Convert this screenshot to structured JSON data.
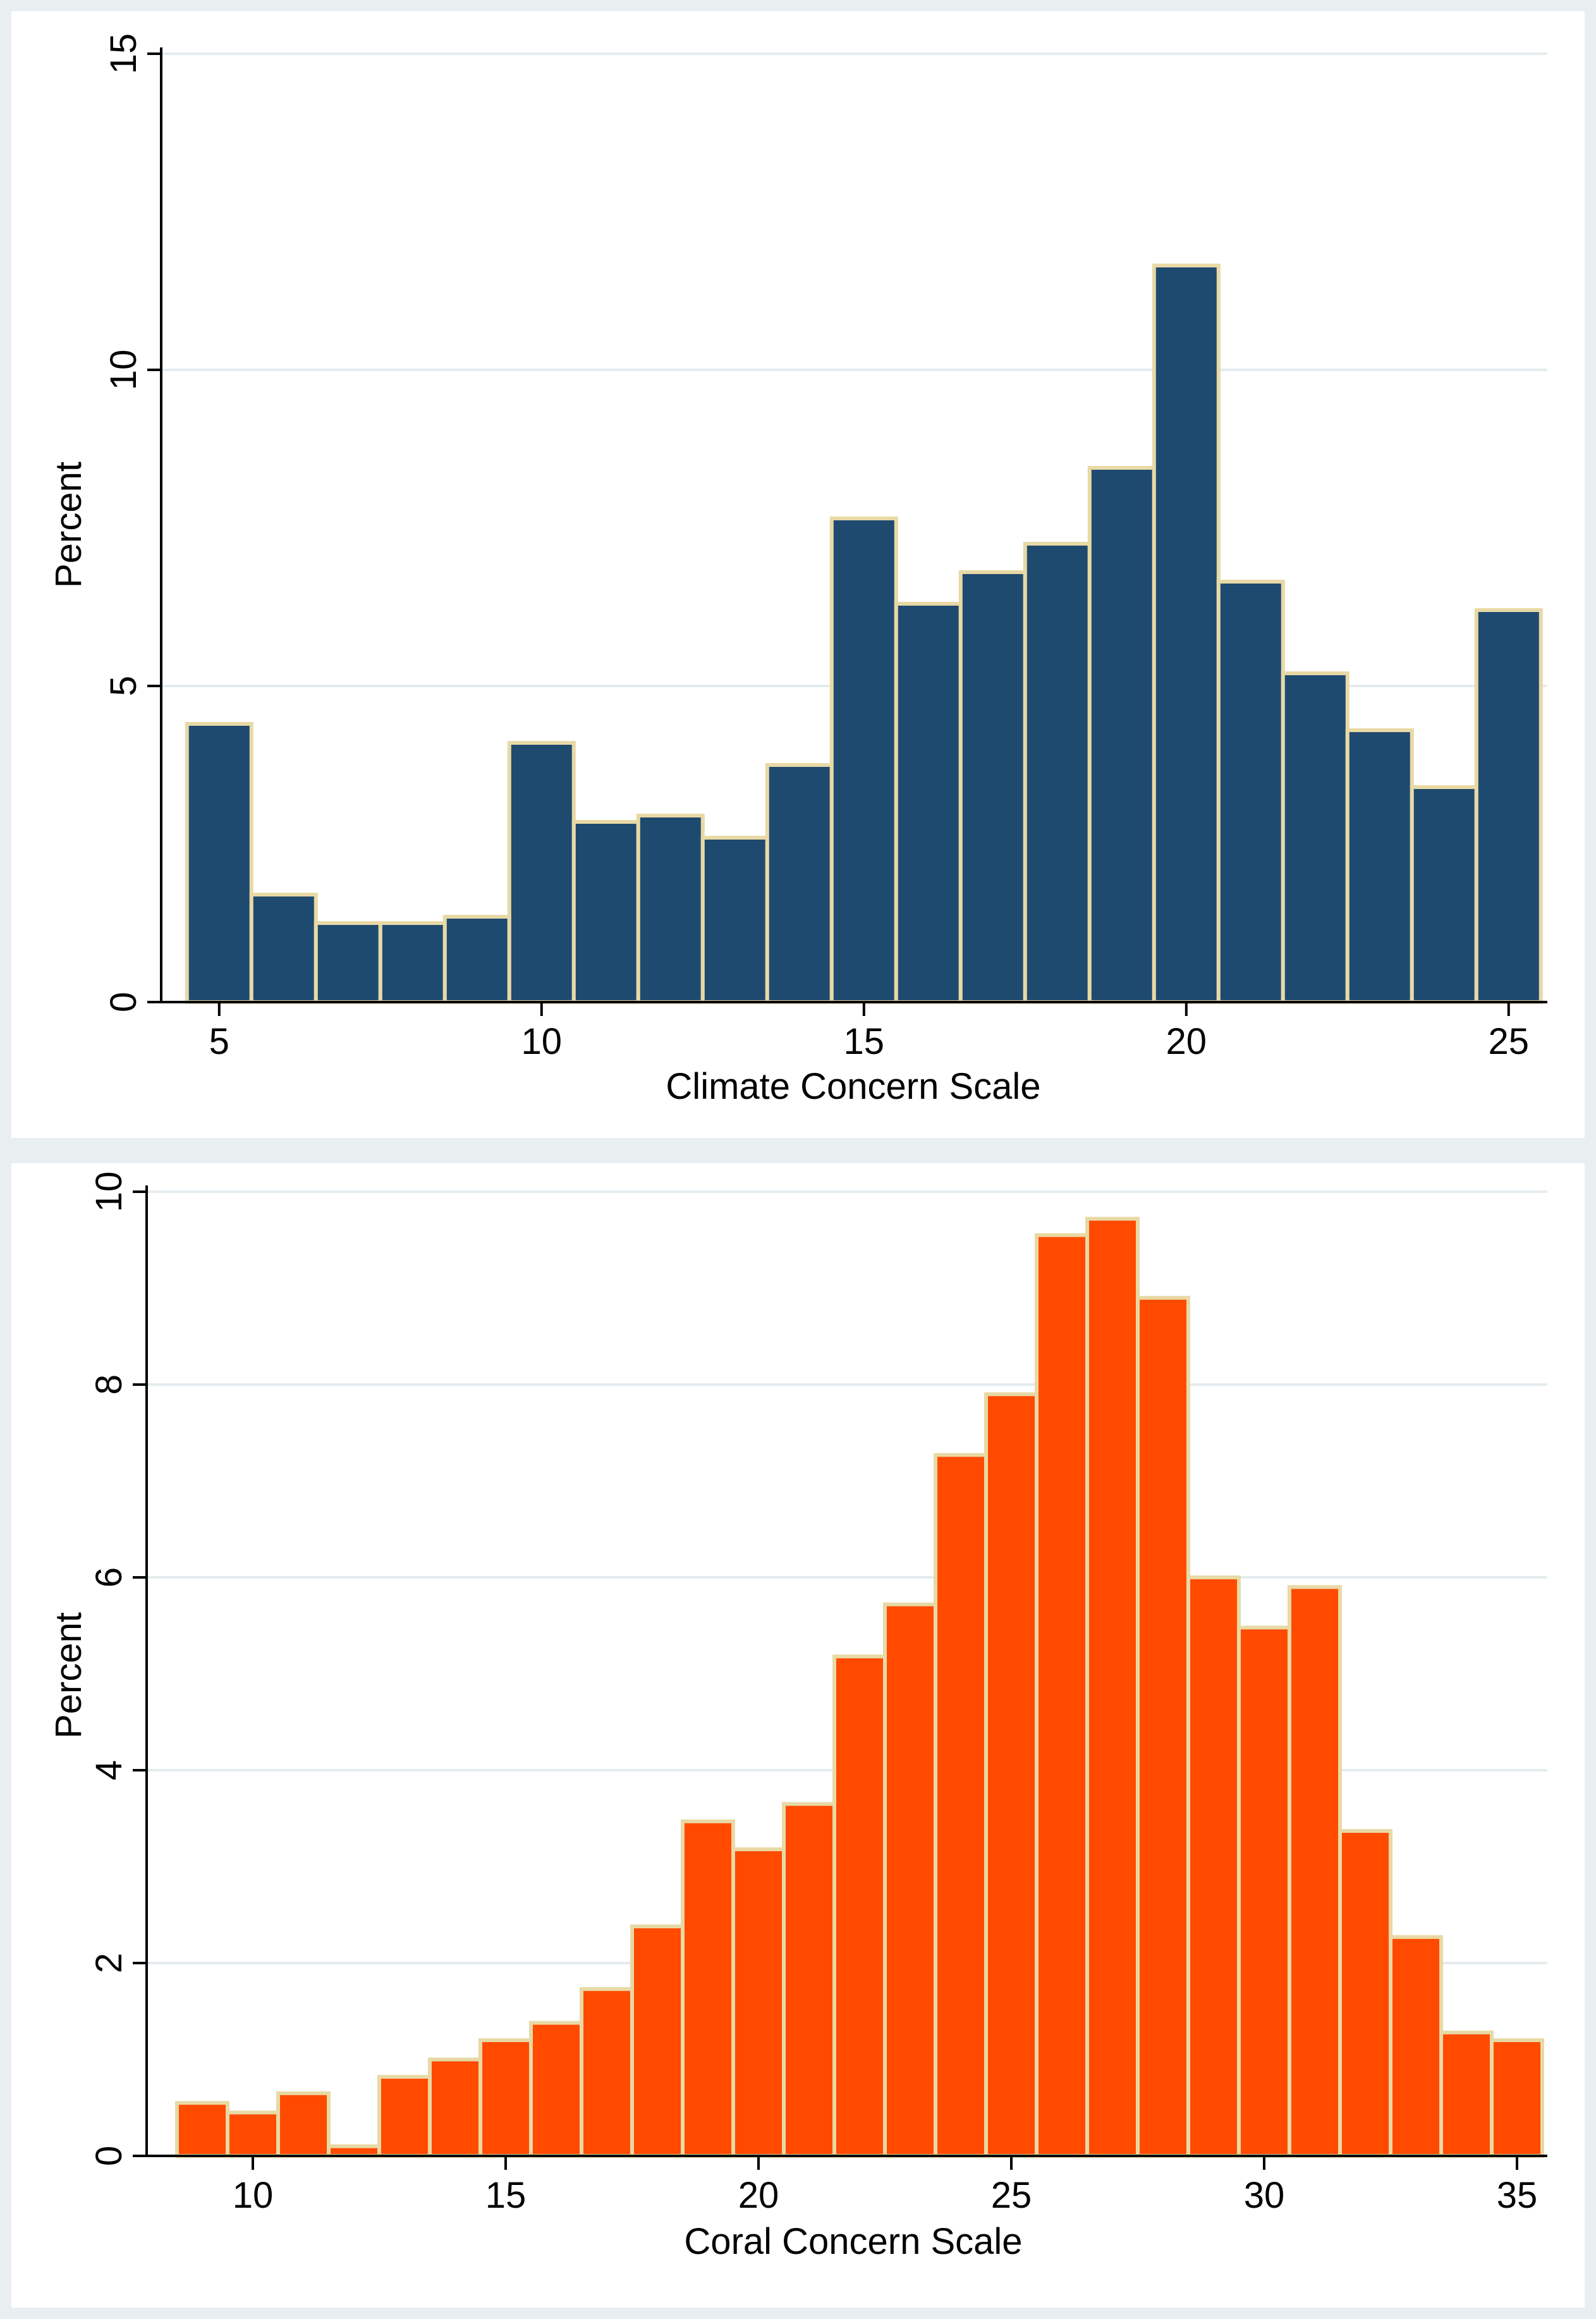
{
  "chart_data": [
    {
      "type": "bar",
      "subtype": "histogram",
      "xlabel": "Climate Concern Scale",
      "ylabel": "Percent",
      "xlim": [
        4.1,
        25.6
      ],
      "ylim": [
        0,
        15
      ],
      "x_ticks": [
        5,
        10,
        15,
        20,
        25
      ],
      "y_ticks": [
        0,
        5,
        10,
        15
      ],
      "grid": true,
      "bar_color": "#1f4a70",
      "edge_color": "#e8d9a5",
      "bin_width": 1,
      "x": [
        5,
        6,
        7,
        8,
        9,
        10,
        11,
        12,
        13,
        14,
        15,
        16,
        17,
        18,
        19,
        20,
        21,
        22,
        23,
        24,
        25
      ],
      "values": [
        4.4,
        1.7,
        1.25,
        1.25,
        1.35,
        4.1,
        2.85,
        2.95,
        2.6,
        3.75,
        7.65,
        6.3,
        6.8,
        7.25,
        8.45,
        11.65,
        6.65,
        5.2,
        4.3,
        3.4,
        6.2
      ]
    },
    {
      "type": "bar",
      "subtype": "histogram",
      "xlabel": "Coral Concern Scale",
      "ylabel": "Percent",
      "xlim": [
        7.9,
        35.6
      ],
      "ylim": [
        0,
        10
      ],
      "x_ticks": [
        10,
        15,
        20,
        25,
        30,
        35
      ],
      "y_ticks": [
        0,
        2,
        4,
        6,
        8,
        10
      ],
      "grid": true,
      "bar_color": "#ff4a00",
      "edge_color": "#e8d9a5",
      "bin_width": 1,
      "x": [
        9,
        10,
        11,
        12,
        13,
        14,
        15,
        16,
        17,
        18,
        19,
        20,
        21,
        22,
        23,
        24,
        25,
        26,
        27,
        28,
        29,
        30,
        31,
        32,
        33,
        34,
        35
      ],
      "values": [
        0.55,
        0.45,
        0.65,
        0.1,
        0.82,
        1.0,
        1.2,
        1.38,
        1.73,
        2.38,
        3.47,
        3.18,
        3.65,
        5.18,
        5.72,
        7.27,
        7.9,
        9.55,
        9.72,
        8.9,
        6.0,
        5.48,
        5.9,
        3.37,
        2.27,
        1.28,
        1.2
      ]
    }
  ]
}
